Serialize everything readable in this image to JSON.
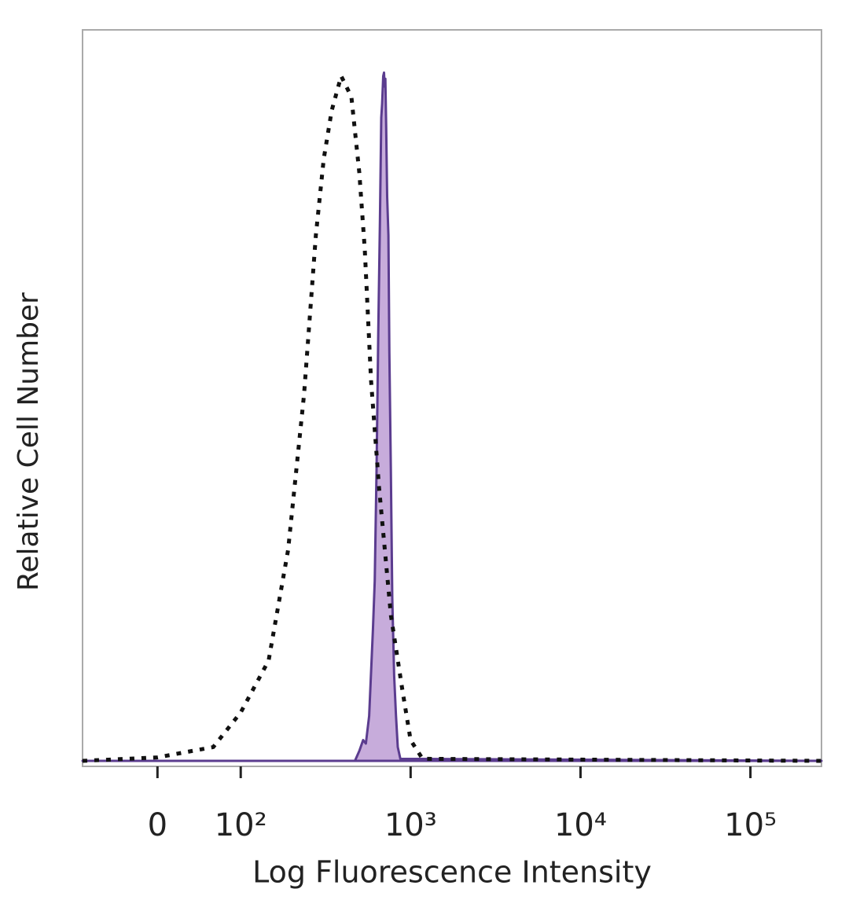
{
  "chart_data": {
    "type": "histogram-overlay",
    "xlabel": "Log Fluorescence Intensity",
    "ylabel": "Relative Cell Number",
    "xscale": "biexponential",
    "xlim": [
      -90,
      262000
    ],
    "ylim": [
      0,
      100
    ],
    "xticks": [
      0,
      {
        "value": 100,
        "label": "10²"
      },
      {
        "value": 1000,
        "label": "10³"
      },
      {
        "value": 10000,
        "label": "10⁴"
      },
      {
        "value": 100000,
        "label": "10⁵"
      }
    ],
    "series": [
      {
        "color": "#5b3c8f",
        "fill": "#c7acdb",
        "linestyle": "solid",
        "x": [
          -90,
          470,
          500,
          525,
          545,
          570,
          600,
          615,
          630,
          645,
          660,
          672,
          680,
          690,
          697,
          703,
          710,
          718,
          728,
          740,
          750,
          765,
          780,
          800,
          820,
          840,
          870,
          262000
        ],
        "values": [
          0,
          0,
          1.5,
          3,
          2.5,
          6.5,
          19,
          26,
          42,
          62,
          78,
          93,
          95,
          99,
          99.5,
          97.5,
          98.6,
          92,
          81.6,
          76,
          59,
          42,
          23.6,
          12.3,
          6.6,
          2,
          0.3,
          0
        ]
      },
      {
        "color": "#111111",
        "linestyle": "dotted",
        "x": [
          -90,
          0,
          67,
          100,
          146,
          190,
          236,
          277,
          308,
          343,
          390,
          448,
          499,
          537,
          585,
          652,
          766,
          898,
          1000,
          1175,
          262000
        ],
        "values": [
          0,
          0.5,
          2,
          7,
          14.5,
          30.5,
          53,
          76,
          87,
          94,
          99,
          96,
          85,
          74,
          55,
          39.5,
          21,
          10,
          3,
          0.3,
          0
        ]
      }
    ]
  }
}
